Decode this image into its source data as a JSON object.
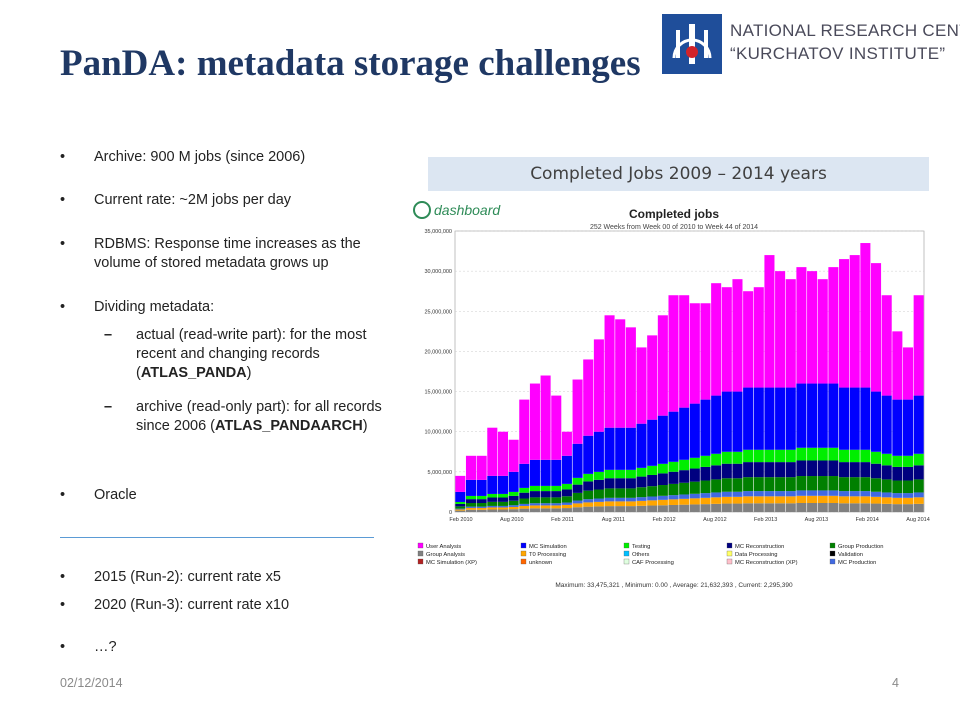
{
  "slide": {
    "title": "PanDA: metadata storage challenges",
    "logo": {
      "line1": "NATIONAL RESEARCH CENTRE",
      "line2": "“KURCHATOV INSTITUTE”"
    },
    "bullets": [
      {
        "text": "Archive: 900 M jobs (since 2006)"
      },
      {
        "text": "Current rate: ~2M jobs per day"
      },
      {
        "text": "RDBMS: Response time increases as the volume of stored metadata grows up"
      },
      {
        "text": "Dividing metadata:"
      },
      {
        "pre": "actual (read-write part): for the most recent and changing records (",
        "bold": "ATLAS_PANDA",
        "post": ")"
      },
      {
        "pre": "archive (read-only part): for all records since 2006 (",
        "bold": "ATLAS_PANDAARCH",
        "post": ")"
      },
      {
        "text": "Oracle"
      },
      {
        "text": "2015 (Run-2): current rate x5"
      },
      {
        "text": "2020 (Run-3): current rate x10"
      },
      {
        "text": "…?"
      }
    ],
    "bullet_glyph": "•",
    "sub_glyph": "–",
    "caption": "Completed Jobs 2009 – 2014 years",
    "footer": {
      "date": "02/12/2014",
      "page": "4"
    }
  },
  "chart_data": {
    "type": "bar",
    "stacked": true,
    "brand": "dashboard",
    "title": "Completed jobs",
    "subtitle": "252 Weeks from Week 00 of 2010 to Week 44 of 2014",
    "ylim": [
      0,
      35000000
    ],
    "yticks": [
      "0",
      "5,000,000",
      "10,000,000",
      "15,000,000",
      "20,000,000",
      "25,000,000",
      "30,000,000",
      "35,000,000"
    ],
    "xticks": [
      "Feb 2010",
      "Aug 2010",
      "Feb 2011",
      "Aug 2011",
      "Feb 2012",
      "Aug 2012",
      "Feb 2013",
      "Aug 2013",
      "Feb 2014",
      "Aug 2014"
    ],
    "totals": [
      4.5,
      7,
      7,
      10.5,
      10,
      9,
      14,
      16,
      17,
      14.5,
      10,
      16.5,
      19,
      21.5,
      24.5,
      24,
      23,
      20.5,
      22,
      24.5,
      27,
      27,
      26,
      26,
      28.5,
      28,
      29,
      27.5,
      28,
      32,
      30,
      29,
      30.5,
      30,
      29,
      30.5,
      31.5,
      32,
      33.5,
      31,
      27,
      22.5,
      20.5,
      27
    ],
    "base": [
      2.5,
      4,
      4,
      4.5,
      4.5,
      5,
      6,
      6.5,
      6.5,
      6.5,
      7,
      8.5,
      9.5,
      10,
      10.5,
      10.5,
      10.5,
      11,
      11.5,
      12,
      12.5,
      13,
      13.5,
      14,
      14.5,
      15,
      15,
      15.5,
      15.5,
      15.5,
      15.5,
      15.5,
      16,
      16,
      16,
      16,
      15.5,
      15.5,
      15.5,
      15,
      14.5,
      14,
      14,
      14.5
    ],
    "series": [
      {
        "name": "User Analysis",
        "color": "#ff00ff"
      },
      {
        "name": "Group Analysis",
        "color": "#808080"
      },
      {
        "name": "MC Simulation (XP)",
        "color": "#b22222"
      },
      {
        "name": "MC Simulation",
        "color": "#0000ff"
      },
      {
        "name": "T0 Processing",
        "color": "#ffa500"
      },
      {
        "name": "unknown",
        "color": "#ff6600"
      },
      {
        "name": "Testing",
        "color": "#00ee00"
      },
      {
        "name": "Others",
        "color": "#00bfff"
      },
      {
        "name": "CAF Processing",
        "color": "#e0ffe0"
      },
      {
        "name": "MC Reconstruction",
        "color": "#000080"
      },
      {
        "name": "Data Processing",
        "color": "#ffff66"
      },
      {
        "name": "MC Reconstruction (XP)",
        "color": "#ffc0cb"
      },
      {
        "name": "Group Production",
        "color": "#008000"
      },
      {
        "name": "Validation",
        "color": "#000000"
      },
      {
        "name": "MC Production",
        "color": "#4169e1"
      }
    ],
    "footer": "Maximum: 33,475,321 , Minimum: 0.00 , Average: 21,632,393 , Current: 2,295,390"
  }
}
